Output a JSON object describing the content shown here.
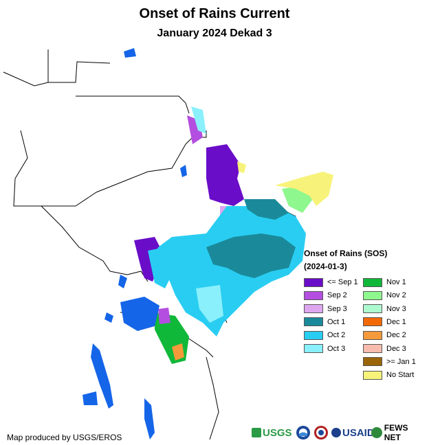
{
  "title": "Onset of Rains Current",
  "subtitle": "January 2024 Dekad 3",
  "legend": {
    "title": "Onset of Rains (SOS)",
    "date": "(2024-01-3)",
    "items": [
      {
        "label": "<= Sep 1",
        "color": "#6a0dc8"
      },
      {
        "label": "Sep 2",
        "color": "#b44ee0"
      },
      {
        "label": "Sep 3",
        "color": "#dfa6f0"
      },
      {
        "label": "Oct 1",
        "color": "#1a8a9a"
      },
      {
        "label": "Oct 2",
        "color": "#29cdf2"
      },
      {
        "label": "Oct 3",
        "color": "#8af0fb"
      },
      {
        "label": "Nov 1",
        "color": "#10b83a"
      },
      {
        "label": "Nov 2",
        "color": "#8ef78e"
      },
      {
        "label": "Nov 3",
        "color": "#aefad0"
      },
      {
        "label": "Dec 1",
        "color": "#f26a06"
      },
      {
        "label": "Dec 2",
        "color": "#f59a3a"
      },
      {
        "label": "Dec 3",
        "color": "#f8bcae"
      },
      {
        "label": ">= Jan 1",
        "color": "#9a6408"
      },
      {
        "label": "No Start",
        "color": "#f7f37a"
      }
    ]
  },
  "credit": "Map produced by USGS/EROS",
  "logos": {
    "usgs": "USGS",
    "usaid": "USAID",
    "fewsnet": "FEWS NET"
  },
  "colors": {
    "water": "#1565e8",
    "border": "#000000"
  }
}
